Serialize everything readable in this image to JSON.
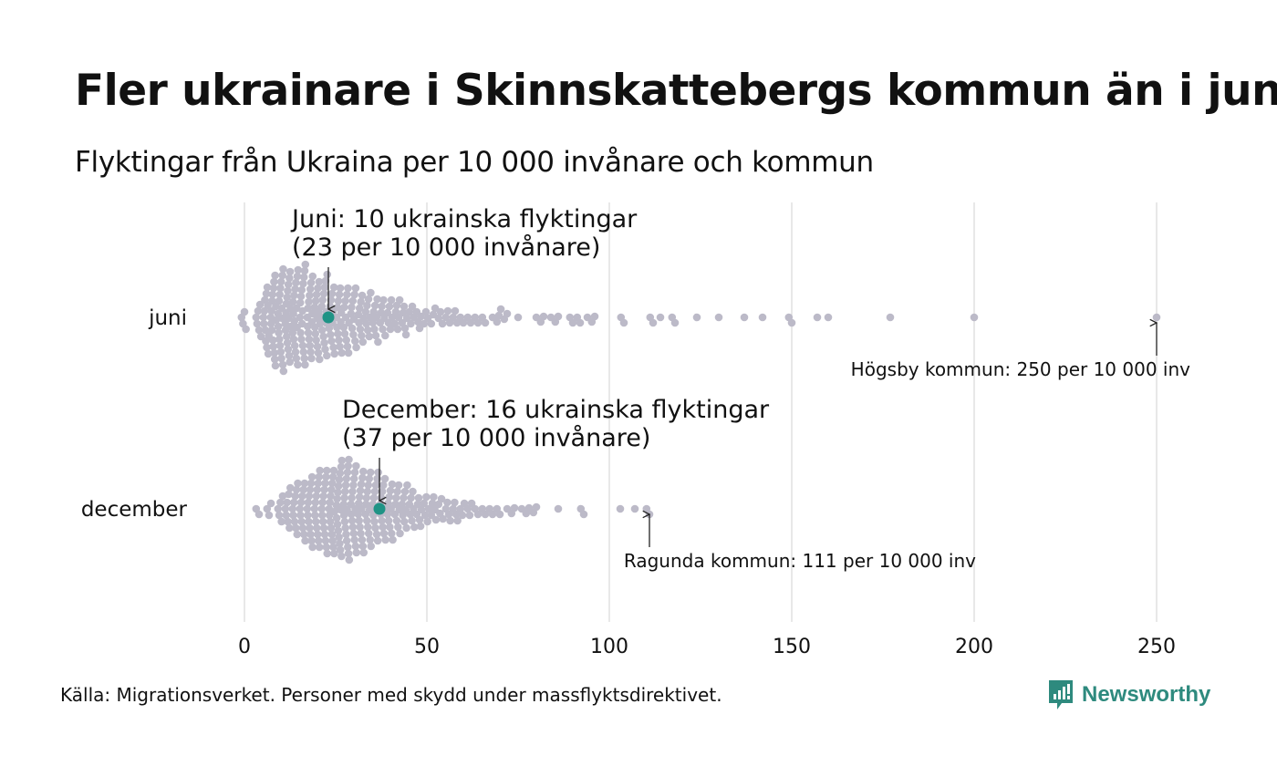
{
  "title": "Fler ukrainare i Skinnskattebergs kommun än i jun",
  "subtitle": "Flyktingar från Ukraina per 10 000 invånare och kommun",
  "source": "Källa: Migrationsverket. Personer med skydd under massflyktsdirektivet.",
  "brand": {
    "name": "Newsworthy",
    "color": "#2e8a7e"
  },
  "colors": {
    "dot": "#bcbac8",
    "highlight": "#1f9385",
    "grid": "#d0d0d0"
  },
  "chart_data": {
    "type": "scatter",
    "subtype": "beeswarm",
    "title": "Fler ukrainare i Skinnskattebergs kommun än i jun",
    "subtitle": "Flyktingar från Ukraina per 10 000 invånare och kommun",
    "xlabel": "",
    "ylabel": "",
    "xlim": [
      0,
      250
    ],
    "xticks": [
      0,
      50,
      100,
      150,
      200,
      250
    ],
    "grid": true,
    "categories": [
      "juni",
      "december"
    ],
    "series": [
      {
        "name": "juni",
        "bins": [
          [
            0,
            4
          ],
          [
            4,
            6
          ],
          [
            6,
            12
          ],
          [
            8,
            16
          ],
          [
            10,
            17
          ],
          [
            12,
            17
          ],
          [
            14,
            16
          ],
          [
            16,
            16
          ],
          [
            18,
            15
          ],
          [
            20,
            14
          ],
          [
            22,
            14
          ],
          [
            24,
            12
          ],
          [
            26,
            12
          ],
          [
            28,
            11
          ],
          [
            30,
            10
          ],
          [
            32,
            9
          ],
          [
            34,
            8
          ],
          [
            36,
            8
          ],
          [
            38,
            7
          ],
          [
            40,
            6
          ],
          [
            42,
            6
          ],
          [
            44,
            6
          ],
          [
            46,
            4
          ],
          [
            48,
            4
          ],
          [
            50,
            3
          ],
          [
            52,
            3
          ],
          [
            54,
            3
          ],
          [
            56,
            3
          ],
          [
            58,
            3
          ],
          [
            60,
            2
          ],
          [
            62,
            2
          ],
          [
            64,
            2
          ],
          [
            66,
            2
          ],
          [
            68,
            1
          ],
          [
            70,
            3
          ],
          [
            72,
            2
          ],
          [
            75,
            1
          ],
          [
            80,
            1
          ],
          [
            82,
            2
          ],
          [
            84,
            1
          ],
          [
            86,
            2
          ],
          [
            90,
            2
          ],
          [
            92,
            2
          ],
          [
            94,
            1
          ],
          [
            96,
            2
          ],
          [
            104,
            2
          ],
          [
            112,
            2
          ],
          [
            114,
            1
          ],
          [
            118,
            2
          ],
          [
            124,
            1
          ],
          [
            130,
            1
          ],
          [
            137,
            1
          ],
          [
            142,
            1
          ],
          [
            150,
            2
          ],
          [
            157,
            1
          ],
          [
            160,
            1
          ],
          [
            177,
            1
          ],
          [
            200,
            1
          ],
          [
            250,
            1
          ]
        ],
        "highlight": {
          "label": "Skinnskatteberg",
          "value": 23,
          "count": 10
        },
        "annotation_highlight": [
          "Juni: 10 ukrainska flyktingar",
          "(23 per 10 000 invånare)"
        ],
        "annotation_max": "Högsby kommun: 250 per 10 000 inv",
        "max": {
          "label": "Högsby kommun",
          "value": 250
        }
      },
      {
        "name": "december",
        "bins": [
          [
            4,
            2
          ],
          [
            7,
            3
          ],
          [
            10,
            5
          ],
          [
            12,
            7
          ],
          [
            14,
            9
          ],
          [
            16,
            10
          ],
          [
            18,
            12
          ],
          [
            20,
            13
          ],
          [
            22,
            14
          ],
          [
            24,
            15
          ],
          [
            26,
            16
          ],
          [
            28,
            17
          ],
          [
            30,
            15
          ],
          [
            32,
            14
          ],
          [
            34,
            13
          ],
          [
            36,
            12
          ],
          [
            38,
            11
          ],
          [
            40,
            10
          ],
          [
            42,
            9
          ],
          [
            44,
            8
          ],
          [
            46,
            7
          ],
          [
            48,
            6
          ],
          [
            50,
            5
          ],
          [
            52,
            5
          ],
          [
            54,
            4
          ],
          [
            56,
            4
          ],
          [
            58,
            4
          ],
          [
            60,
            3
          ],
          [
            62,
            3
          ],
          [
            64,
            2
          ],
          [
            66,
            2
          ],
          [
            68,
            2
          ],
          [
            70,
            2
          ],
          [
            72,
            1
          ],
          [
            74,
            2
          ],
          [
            76,
            1
          ],
          [
            78,
            2
          ],
          [
            80,
            2
          ],
          [
            86,
            1
          ],
          [
            93,
            2
          ],
          [
            103,
            1
          ],
          [
            107,
            1
          ],
          [
            111,
            2
          ]
        ],
        "highlight": {
          "label": "Skinnskatteberg",
          "value": 37,
          "count": 16
        },
        "annotation_highlight": [
          "December: 16 ukrainska flyktingar",
          "(37 per 10 000 invånare)"
        ],
        "annotation_max": "Ragunda kommun: 111 per 10 000 inv",
        "max": {
          "label": "Ragunda kommun",
          "value": 111
        }
      }
    ]
  }
}
